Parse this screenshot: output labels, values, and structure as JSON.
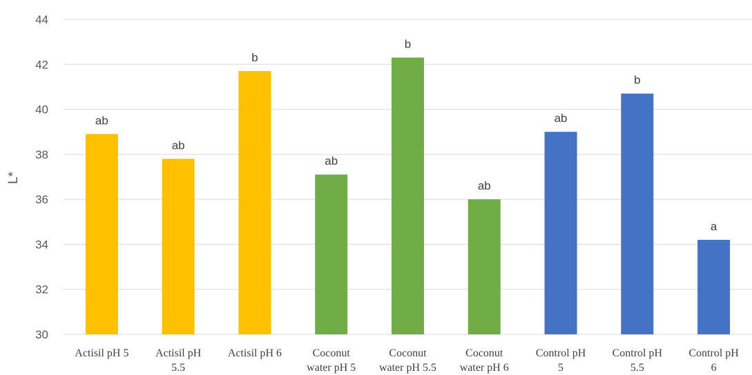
{
  "chart_data": {
    "type": "bar",
    "title": "",
    "xlabel": "",
    "ylabel": "L*",
    "ylim": [
      30,
      44
    ],
    "yticks": [
      30,
      32,
      34,
      36,
      38,
      40,
      42,
      44
    ],
    "grid": true,
    "legend": "none",
    "categories": [
      [
        "Actisil pH 5"
      ],
      [
        "Actisil pH",
        "5.5"
      ],
      [
        "Actisil pH 6"
      ],
      [
        "Coconut",
        "water pH 5"
      ],
      [
        "Coconut",
        "water pH 5.5"
      ],
      [
        "Coconut",
        "water pH 6"
      ],
      [
        "Control pH",
        "5"
      ],
      [
        "Control pH",
        "5.5"
      ],
      [
        "Control pH",
        "6"
      ]
    ],
    "values": [
      38.9,
      37.8,
      41.7,
      37.1,
      42.3,
      36.0,
      39.0,
      40.7,
      34.2
    ],
    "labels": [
      "ab",
      "ab",
      "b",
      "ab",
      "b",
      "ab",
      "ab",
      "b",
      "a"
    ],
    "colors": [
      "#FFC000",
      "#FFC000",
      "#FFC000",
      "#70AD47",
      "#70AD47",
      "#70AD47",
      "#4472C4",
      "#4472C4",
      "#4472C4"
    ],
    "gridColor": "#d9d9d9"
  }
}
